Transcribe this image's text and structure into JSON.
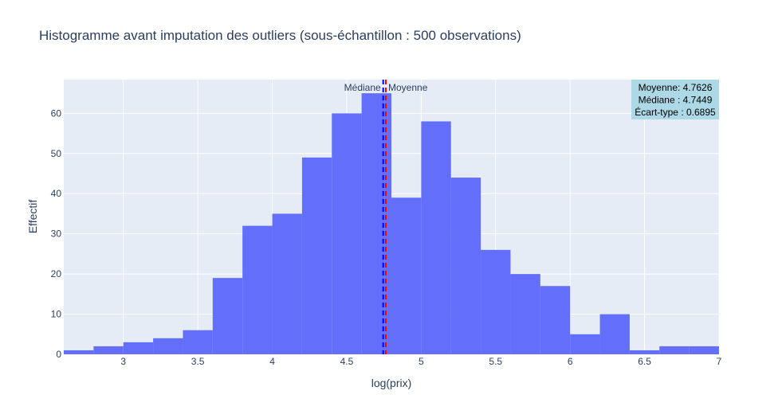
{
  "chart_data": {
    "type": "bar",
    "title": "Histogramme avant imputation des outliers (sous-échantillon : 500 observations)",
    "xlabel": "log(prix)",
    "ylabel": "Effectif",
    "xlim": [
      2.6,
      7.0
    ],
    "ylim": [
      0,
      68.4
    ],
    "x_ticks": [
      "3",
      "3.5",
      "4",
      "4.5",
      "5",
      "5.5",
      "6",
      "6.5",
      "7"
    ],
    "y_ticks": [
      "0",
      "10",
      "20",
      "30",
      "40",
      "50",
      "60"
    ],
    "bin_width": 0.2,
    "bins": [
      {
        "x0": 2.6,
        "x1": 2.8,
        "count": 1
      },
      {
        "x0": 2.8,
        "x1": 3.0,
        "count": 2
      },
      {
        "x0": 3.0,
        "x1": 3.2,
        "count": 3
      },
      {
        "x0": 3.2,
        "x1": 3.4,
        "count": 4
      },
      {
        "x0": 3.4,
        "x1": 3.6,
        "count": 6
      },
      {
        "x0": 3.6,
        "x1": 3.8,
        "count": 19
      },
      {
        "x0": 3.8,
        "x1": 4.0,
        "count": 32
      },
      {
        "x0": 4.0,
        "x1": 4.2,
        "count": 35
      },
      {
        "x0": 4.2,
        "x1": 4.4,
        "count": 49
      },
      {
        "x0": 4.4,
        "x1": 4.6,
        "count": 60
      },
      {
        "x0": 4.6,
        "x1": 4.8,
        "count": 65
      },
      {
        "x0": 4.8,
        "x1": 5.0,
        "count": 39
      },
      {
        "x0": 5.0,
        "x1": 5.2,
        "count": 58
      },
      {
        "x0": 5.2,
        "x1": 5.4,
        "count": 44
      },
      {
        "x0": 5.4,
        "x1": 5.6,
        "count": 26
      },
      {
        "x0": 5.6,
        "x1": 5.8,
        "count": 20
      },
      {
        "x0": 5.8,
        "x1": 6.0,
        "count": 17
      },
      {
        "x0": 6.0,
        "x1": 6.2,
        "count": 5
      },
      {
        "x0": 6.2,
        "x1": 6.4,
        "count": 10
      },
      {
        "x0": 6.4,
        "x1": 6.6,
        "count": 1
      },
      {
        "x0": 6.6,
        "x1": 6.8,
        "count": 2
      },
      {
        "x0": 6.8,
        "x1": 7.0,
        "count": 2
      }
    ],
    "reference_lines": [
      {
        "label": "Médiane",
        "value": 4.7449,
        "color": "#0000ff",
        "dash": "dash"
      },
      {
        "label": "Moyenne",
        "value": 4.7626,
        "color": "#ff0000",
        "dash": "dash"
      }
    ],
    "stats_box": {
      "lines": [
        "Moyenne: 4.7626",
        "Médiane : 4.7449",
        "Écart-type : 0.6895"
      ],
      "position": "top-right",
      "background": "#add8e6"
    },
    "bar_color": "#636efa",
    "plot_background": "#e5ecf6",
    "grid": true
  }
}
